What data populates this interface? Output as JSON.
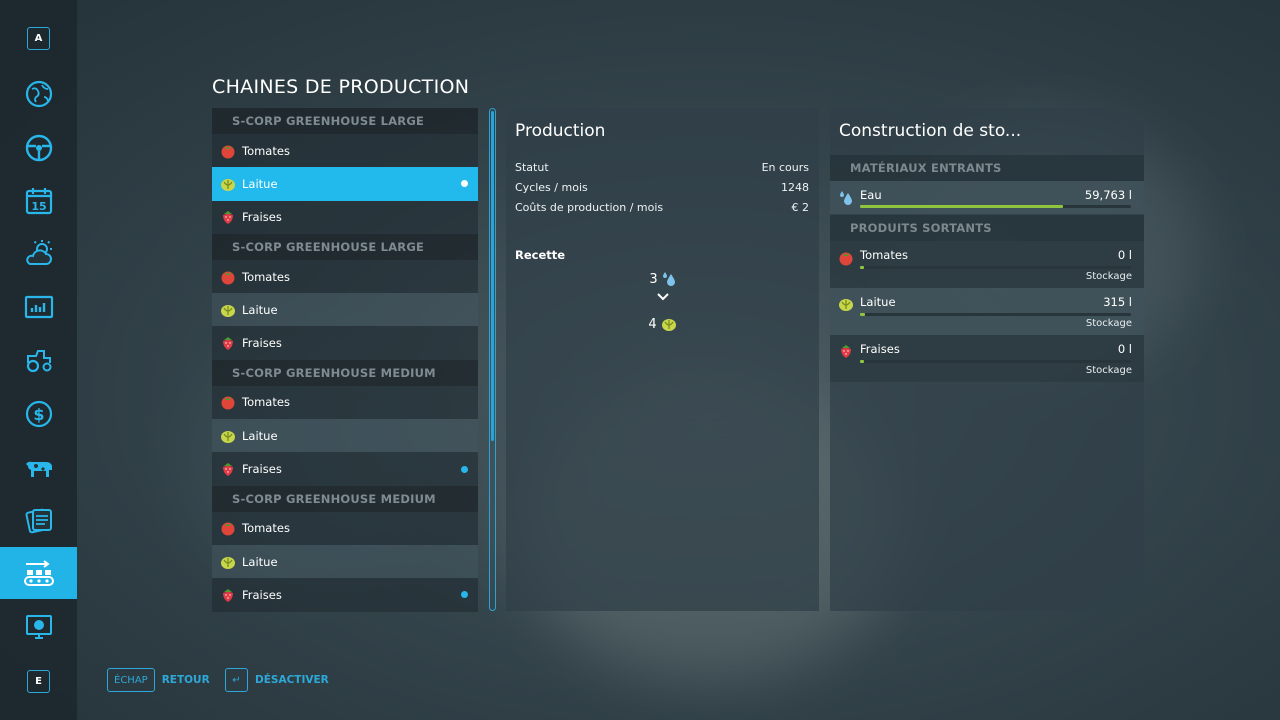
{
  "page_title": "CHAINES DE PRODUCTION",
  "sidebar": {
    "top_key": "A",
    "bottom_key": "E",
    "items": [
      {
        "icon": "globe-map-icon"
      },
      {
        "icon": "steering-wheel-icon"
      },
      {
        "icon": "calendar-icon",
        "text": "15"
      },
      {
        "icon": "weather-icon"
      },
      {
        "icon": "statistics-icon"
      },
      {
        "icon": "tractor-icon"
      },
      {
        "icon": "finances-icon"
      },
      {
        "icon": "animals-icon"
      },
      {
        "icon": "contracts-icon"
      },
      {
        "icon": "production-icon",
        "active": true
      },
      {
        "icon": "help-icon"
      }
    ]
  },
  "production_list": {
    "groups": [
      {
        "name": "S-CORP GREENHOUSE LARGE",
        "items": [
          {
            "label": "Tomates",
            "icon": "tomato-icon",
            "dot": false,
            "selected": false
          },
          {
            "label": "Laitue",
            "icon": "lettuce-icon",
            "dot": true,
            "selected": true
          },
          {
            "label": "Fraises",
            "icon": "strawberry-icon",
            "dot": false,
            "selected": false
          }
        ]
      },
      {
        "name": "S-CORP GREENHOUSE LARGE",
        "items": [
          {
            "label": "Tomates",
            "icon": "tomato-icon",
            "dot": false,
            "selected": false
          },
          {
            "label": "Laitue",
            "icon": "lettuce-icon",
            "dot": false,
            "selected": false
          },
          {
            "label": "Fraises",
            "icon": "strawberry-icon",
            "dot": false,
            "selected": false
          }
        ]
      },
      {
        "name": "S-CORP GREENHOUSE MEDIUM",
        "items": [
          {
            "label": "Tomates",
            "icon": "tomato-icon",
            "dot": false,
            "selected": false
          },
          {
            "label": "Laitue",
            "icon": "lettuce-icon",
            "dot": false,
            "selected": false
          },
          {
            "label": "Fraises",
            "icon": "strawberry-icon",
            "dot": true,
            "selected": false
          }
        ]
      },
      {
        "name": "S-CORP GREENHOUSE MEDIUM",
        "items": [
          {
            "label": "Tomates",
            "icon": "tomato-icon",
            "dot": false,
            "selected": false
          },
          {
            "label": "Laitue",
            "icon": "lettuce-icon",
            "dot": false,
            "selected": false
          },
          {
            "label": "Fraises",
            "icon": "strawberry-icon",
            "dot": true,
            "selected": false
          }
        ]
      }
    ]
  },
  "production_panel": {
    "title": "Production",
    "status_label": "Statut",
    "status_value": "En cours",
    "cycles_label": "Cycles / mois",
    "cycles_value": "1248",
    "costs_label": "Coûts de production / mois",
    "costs_value": "€ 2",
    "recipe_label": "Recette",
    "recipe_input_amount": "3",
    "recipe_input_icon": "water-icon",
    "recipe_output_amount": "4",
    "recipe_output_icon": "lettuce-icon"
  },
  "storage_panel": {
    "title": "Construction de sto...",
    "inputs_header": "MATÉRIAUX ENTRANTS",
    "inputs": [
      {
        "name": "Eau",
        "value": "59,763 l",
        "icon": "water-icon",
        "fill_fraction": 0.75
      }
    ],
    "outputs_header": "PRODUITS SORTANTS",
    "outputs": [
      {
        "name": "Tomates",
        "value": "0 l",
        "icon": "tomato-icon",
        "fill_fraction": 0.0,
        "mode": "Stockage"
      },
      {
        "name": "Laitue",
        "value": "315 l",
        "icon": "lettuce-icon",
        "fill_fraction": 0.02,
        "mode": "Stockage"
      },
      {
        "name": "Fraises",
        "value": "0 l",
        "icon": "strawberry-icon",
        "fill_fraction": 0.0,
        "mode": "Stockage"
      }
    ]
  },
  "footer": {
    "back_key": "ÉCHAP",
    "back_label": "RETOUR",
    "deactivate_key": "↵",
    "deactivate_label": "DÉSACTIVER"
  },
  "colors": {
    "accent": "#22b4e7",
    "bar_fill": "#8fc43f"
  }
}
